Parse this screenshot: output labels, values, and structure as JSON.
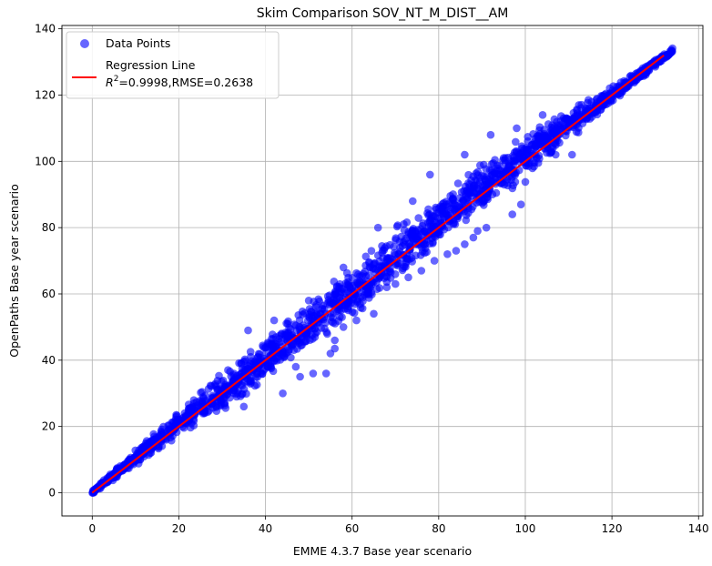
{
  "chart_data": {
    "type": "scatter",
    "title": "Skim Comparison SOV_NT_M_DIST__AM",
    "xlabel": "EMME 4.3.7 Base year scenario",
    "ylabel": "OpenPaths Base year scenario",
    "xlim": [
      -7,
      141
    ],
    "ylim": [
      -7,
      141
    ],
    "xticks": [
      0,
      20,
      40,
      60,
      80,
      100,
      120,
      140
    ],
    "yticks": [
      0,
      20,
      40,
      60,
      80,
      100,
      120,
      140
    ],
    "grid": true,
    "legend_position": "top-left",
    "colors": {
      "points": "#0000ff",
      "regression": "#ff0000"
    },
    "series": [
      {
        "name": "Data Points",
        "kind": "scatter",
        "bands": [
          {
            "x_start": 0,
            "x_end": 20,
            "y_low_start": -0.5,
            "y_high_start": 0.8,
            "y_low_end": 16,
            "y_high_end": 26
          },
          {
            "x_start": 20,
            "x_end": 40,
            "y_low_start": 16,
            "y_high_start": 26,
            "y_low_end": 32,
            "y_high_end": 48
          },
          {
            "x_start": 40,
            "x_end": 60,
            "y_low_start": 32,
            "y_high_start": 48,
            "y_low_end": 50,
            "y_high_end": 71
          },
          {
            "x_start": 60,
            "x_end": 80,
            "y_low_start": 50,
            "y_high_start": 71,
            "y_low_end": 72,
            "y_high_end": 92
          },
          {
            "x_start": 80,
            "x_end": 100,
            "y_low_start": 72,
            "y_high_start": 92,
            "y_low_end": 94,
            "y_high_end": 110
          },
          {
            "x_start": 100,
            "x_end": 120,
            "y_low_start": 94,
            "y_high_start": 110,
            "y_low_end": 117,
            "y_high_end": 123
          },
          {
            "x_start": 120,
            "x_end": 134,
            "y_low_start": 117,
            "y_high_start": 123,
            "y_low_end": 132.5,
            "y_high_end": 134.5
          }
        ],
        "outliers": [
          [
            35,
            26
          ],
          [
            44,
            30
          ],
          [
            47,
            38
          ],
          [
            48,
            35
          ],
          [
            51,
            36
          ],
          [
            54,
            36
          ],
          [
            55,
            42
          ],
          [
            56,
            43.5
          ],
          [
            56,
            46
          ],
          [
            58,
            50
          ],
          [
            61,
            52
          ],
          [
            65,
            54
          ],
          [
            68,
            62
          ],
          [
            70,
            63
          ],
          [
            73,
            65
          ],
          [
            76,
            67
          ],
          [
            79,
            70
          ],
          [
            82,
            72
          ],
          [
            84,
            73
          ],
          [
            86,
            75
          ],
          [
            88,
            77
          ],
          [
            89,
            79
          ],
          [
            91,
            80
          ],
          [
            97,
            84
          ],
          [
            99,
            87
          ],
          [
            100,
            93.8
          ],
          [
            103,
            99.5
          ],
          [
            104,
            114
          ],
          [
            106,
            103
          ],
          [
            107,
            102
          ],
          [
            109,
            112
          ],
          [
            110.8,
            102
          ],
          [
            111,
            113
          ],
          [
            114,
            116
          ],
          [
            36,
            49
          ],
          [
            42,
            52
          ],
          [
            50,
            58
          ],
          [
            58,
            68
          ],
          [
            66,
            80
          ],
          [
            74,
            88
          ],
          [
            78,
            96
          ],
          [
            86,
            102
          ],
          [
            92,
            108
          ],
          [
            98,
            110
          ]
        ]
      },
      {
        "name": "Regression Line",
        "kind": "line",
        "x": [
          0,
          132
        ],
        "y": [
          0,
          132
        ]
      }
    ],
    "legend_lines": {
      "regression_stats": "=0.9998,RMSE=0.2638",
      "r2_symbol": "R",
      "r2_superscript": "2"
    }
  }
}
